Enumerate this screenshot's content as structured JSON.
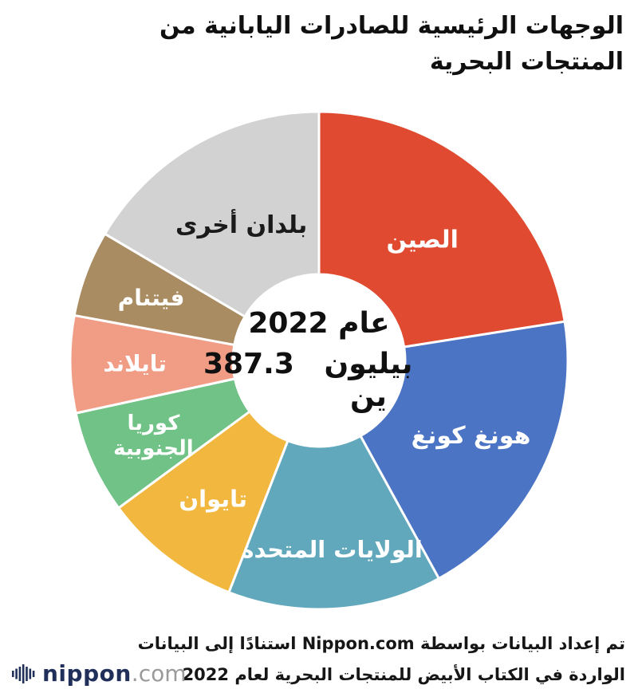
{
  "title": {
    "line1": "الوجهات الرئيسية للصادرات اليابانية من",
    "line2": "المنتجات البحرية",
    "color": "#101010"
  },
  "chart_data": {
    "type": "pie",
    "subtype": "donut",
    "title": "الوجهات الرئيسية للصادرات اليابانية من المنتجات البحرية",
    "year_label": "عام 2022",
    "total": {
      "value": 387.3,
      "unit": "بيليون ين"
    },
    "center_label": {
      "line1": "عام 2022",
      "value": "387.3",
      "unit": "بيليون ين"
    },
    "legend_position": "labels-inside-slices",
    "start_angle_deg": 0,
    "slice_gap_color": "#ffffff",
    "slices": [
      {
        "label": "الصين",
        "percent": 22.5,
        "color": "#DF4A30",
        "text_color": "#ffffff",
        "label_r": 0.64,
        "font_size": 30
      },
      {
        "label": "هونغ كونغ",
        "percent": 19.5,
        "color": "#4C74C4",
        "text_color": "#ffffff",
        "label_r": 0.68,
        "font_size": 30
      },
      {
        "label": "الولايات المتحدة",
        "percent": 13.9,
        "color": "#62A8BD",
        "text_color": "#ffffff",
        "label_r": 0.76,
        "font_size": 29
      },
      {
        "label": "تايوان",
        "percent": 9.0,
        "color": "#F1B73F",
        "text_color": "#ffffff",
        "label_r": 0.7,
        "font_size": 29
      },
      {
        "label": "كوريا الجنوبية",
        "label_lines": [
          "كوريا",
          "الجنوبية"
        ],
        "percent": 6.7,
        "color": "#70C287",
        "text_color": "#ffffff",
        "label_r": 0.73,
        "font_size": 26
      },
      {
        "label": "تايلاند",
        "percent": 6.3,
        "color": "#F19D85",
        "text_color": "#ffffff",
        "label_r": 0.74,
        "font_size": 28
      },
      {
        "label": "فيتنام",
        "percent": 5.6,
        "color": "#AA8C63",
        "text_color": "#ffffff",
        "label_r": 0.72,
        "font_size": 28
      },
      {
        "label": "بلدان أخرى",
        "percent": 16.5,
        "color": "#D2D2D2",
        "text_color": "#1A1A1A",
        "label_r": 0.63,
        "font_size": 30
      }
    ]
  },
  "footer": {
    "source_line1": "تم إعداد البيانات بواسطة Nippon.com استنادًا إلى البيانات",
    "source_line2": "الواردة في الكتاب الأبيض للمنتجات البحرية لعام 2022",
    "logo": {
      "brand": "nippon",
      "tld": ".com",
      "icon": "soundwave-bars-icon",
      "brand_color": "#20305A",
      "tld_color": "#9A9A9A"
    }
  }
}
